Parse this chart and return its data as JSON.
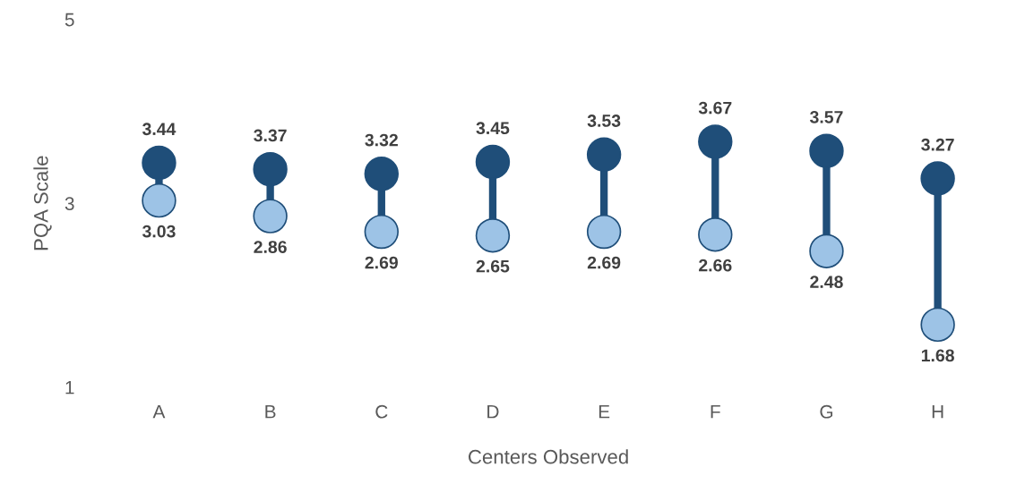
{
  "chart_data": {
    "type": "scatter",
    "xlabel": "Centers Observed",
    "ylabel": "PQA Scale",
    "categories": [
      "A",
      "B",
      "C",
      "D",
      "E",
      "F",
      "G",
      "H"
    ],
    "series": [
      {
        "color": "#1f4e79",
        "values": [
          3.44,
          3.37,
          3.32,
          3.45,
          3.53,
          3.67,
          3.57,
          3.27
        ]
      },
      {
        "color": "#9dc3e6",
        "values": [
          3.03,
          2.86,
          2.69,
          2.65,
          2.69,
          2.66,
          2.48,
          1.68
        ]
      }
    ],
    "ylim": [
      1,
      5
    ],
    "yticks": [
      1,
      3,
      5
    ],
    "grid": false,
    "legend": false,
    "marker": "circle",
    "data_labels": true
  }
}
